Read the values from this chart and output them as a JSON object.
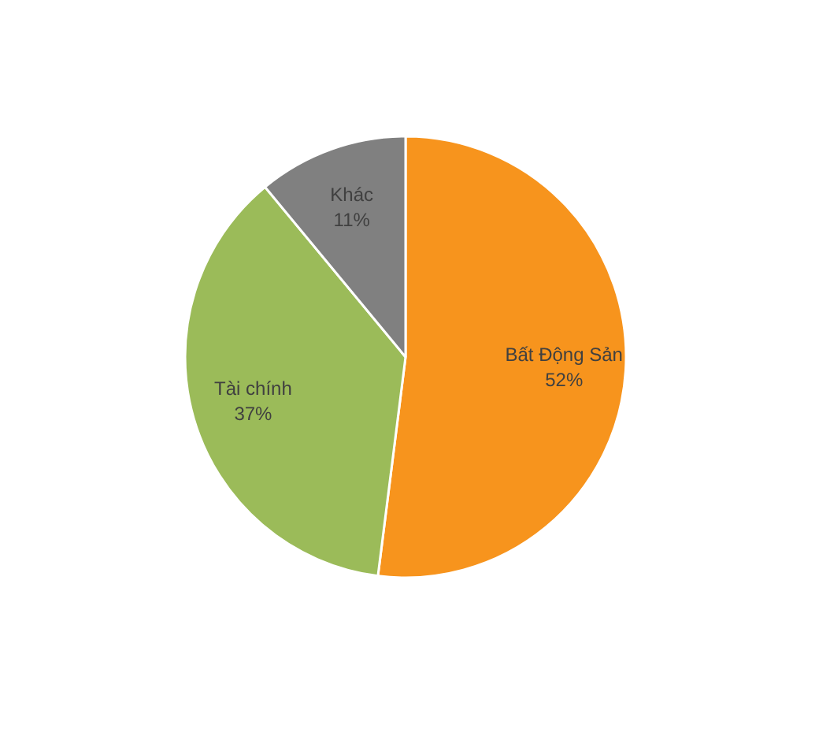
{
  "chart_data": {
    "type": "pie",
    "categories": [
      "Bất Động Sản",
      "Tài chính",
      "Khác"
    ],
    "values": [
      52,
      37,
      11
    ],
    "colors": [
      "#f7941d",
      "#9bbb59",
      "#808080"
    ],
    "value_labels": [
      "52%",
      "37%",
      "11%"
    ]
  }
}
